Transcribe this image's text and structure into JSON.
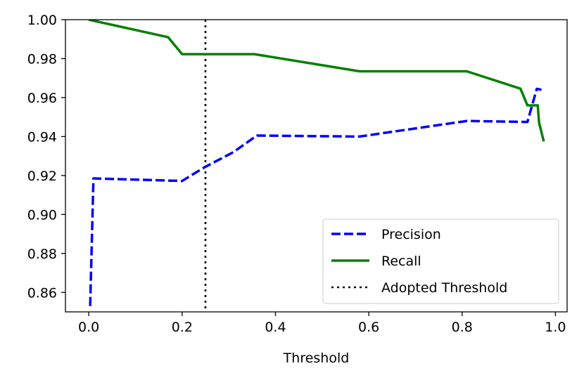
{
  "chart_data": {
    "type": "line",
    "title": "",
    "xlabel": "Threshold",
    "ylabel": "",
    "xlim": [
      -0.05,
      1.025
    ],
    "ylim": [
      0.85,
      1.0
    ],
    "xticks": [
      0.0,
      0.2,
      0.4,
      0.6,
      0.8,
      1.0
    ],
    "xtick_labels": [
      "0.0",
      "0.2",
      "0.4",
      "0.6",
      "0.8",
      "1.0"
    ],
    "yticks": [
      0.86,
      0.88,
      0.9,
      0.92,
      0.94,
      0.96,
      0.98,
      1.0
    ],
    "ytick_labels": [
      "0.86",
      "0.88",
      "0.90",
      "0.92",
      "0.94",
      "0.96",
      "0.98",
      "1.00"
    ],
    "grid": false,
    "legend_position": "lower-right",
    "series": [
      {
        "name": "Precision",
        "color": "#0000ff",
        "style": "dashed",
        "x": [
          0.003,
          0.01,
          0.2,
          0.25,
          0.31,
          0.36,
          0.58,
          0.81,
          0.94,
          0.96,
          0.97
        ],
        "y": [
          0.853,
          0.9185,
          0.9172,
          0.9245,
          0.932,
          0.9405,
          0.94,
          0.948,
          0.9475,
          0.9645,
          0.964
        ]
      },
      {
        "name": "Recall",
        "color": "#008000",
        "style": "solid",
        "x": [
          0.0,
          0.17,
          0.2,
          0.355,
          0.58,
          0.81,
          0.925,
          0.94,
          0.955,
          0.962,
          0.965,
          0.975
        ],
        "y": [
          1.0,
          0.991,
          0.9823,
          0.9823,
          0.9735,
          0.9735,
          0.9646,
          0.956,
          0.956,
          0.956,
          0.947,
          0.9375
        ]
      }
    ],
    "vlines": [
      {
        "name": "Adopted Threshold",
        "x": 0.25,
        "color": "#000000",
        "style": "dotted"
      }
    ]
  }
}
